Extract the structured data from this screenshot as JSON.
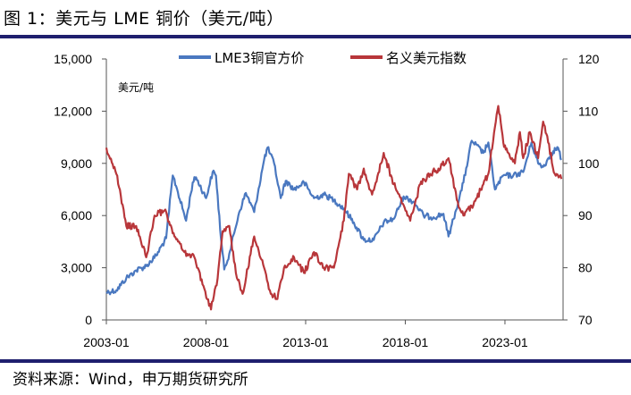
{
  "header": {
    "title": "图 1：美元与 LME 铜价（美元/吨）"
  },
  "footer": {
    "source": "资料来源：Wind，申万期货研究所"
  },
  "chart_data": {
    "type": "line",
    "unit_label": "美元/吨",
    "x_ticks": [
      "2003-01",
      "2008-01",
      "2013-01",
      "2018-01",
      "2023-01"
    ],
    "xlim": [
      "2003-01",
      "2025-12"
    ],
    "left_axis": {
      "ticks": [
        "0",
        "3,000",
        "6,000",
        "9,000",
        "12,000",
        "15,000"
      ],
      "ylim": [
        0,
        15000
      ]
    },
    "right_axis": {
      "ticks": [
        "70",
        "80",
        "90",
        "100",
        "110",
        "120"
      ],
      "ylim": [
        70,
        120
      ]
    },
    "legend_position": "top-center",
    "grid": false,
    "series": [
      {
        "name": "LME3铜官方价",
        "axis": "left",
        "color": "#4a78c0",
        "x": [
          "2003-01",
          "2003-07",
          "2004-01",
          "2004-07",
          "2005-01",
          "2005-07",
          "2006-01",
          "2006-05",
          "2006-07",
          "2007-01",
          "2007-05",
          "2007-07",
          "2008-01",
          "2008-05",
          "2008-07",
          "2008-10",
          "2008-12",
          "2009-03",
          "2009-06",
          "2009-09",
          "2010-01",
          "2010-06",
          "2010-12",
          "2011-02",
          "2011-06",
          "2011-10",
          "2012-01",
          "2012-06",
          "2012-12",
          "2013-06",
          "2013-12",
          "2014-06",
          "2014-12",
          "2015-06",
          "2015-12",
          "2016-06",
          "2016-12",
          "2017-06",
          "2017-12",
          "2018-06",
          "2018-12",
          "2019-06",
          "2019-12",
          "2020-03",
          "2020-06",
          "2020-12",
          "2021-05",
          "2021-12",
          "2022-03",
          "2022-07",
          "2022-12",
          "2023-06",
          "2023-12",
          "2024-05",
          "2024-09",
          "2024-12",
          "2025-06",
          "2025-09",
          "2025-11"
        ],
        "values": [
          1600,
          1700,
          2400,
          2850,
          3100,
          3700,
          4700,
          8300,
          7700,
          5700,
          7900,
          8200,
          7000,
          8500,
          8300,
          4700,
          2900,
          3800,
          5000,
          6200,
          7300,
          6200,
          9200,
          9900,
          9000,
          7000,
          8000,
          7500,
          7900,
          7000,
          7200,
          6900,
          6400,
          5600,
          4600,
          4600,
          5600,
          5800,
          7100,
          6800,
          6000,
          5900,
          6100,
          4800,
          5800,
          7900,
          10300,
          9600,
          10200,
          7500,
          8300,
          8300,
          8500,
          10200,
          9000,
          8800,
          9700,
          9900,
          9200
        ]
      },
      {
        "name": "名义美元指数",
        "axis": "right",
        "color": "#b8363a",
        "x": [
          "2003-01",
          "2003-07",
          "2004-01",
          "2004-07",
          "2005-01",
          "2005-06",
          "2005-12",
          "2006-06",
          "2006-12",
          "2007-06",
          "2007-12",
          "2008-04",
          "2008-08",
          "2008-11",
          "2009-03",
          "2009-07",
          "2009-11",
          "2010-06",
          "2010-12",
          "2011-04",
          "2011-08",
          "2011-12",
          "2012-06",
          "2012-12",
          "2013-06",
          "2013-12",
          "2014-06",
          "2014-12",
          "2015-03",
          "2015-08",
          "2015-12",
          "2016-05",
          "2016-12",
          "2017-06",
          "2017-12",
          "2018-04",
          "2018-10",
          "2019-04",
          "2019-09",
          "2020-03",
          "2020-08",
          "2020-12",
          "2021-06",
          "2021-12",
          "2022-03",
          "2022-07",
          "2022-09",
          "2022-12",
          "2023-03",
          "2023-07",
          "2023-10",
          "2023-12",
          "2024-04",
          "2024-09",
          "2024-12",
          "2025-03",
          "2025-07",
          "2025-11"
        ],
        "values": [
          103,
          98,
          88,
          88,
          82,
          90,
          91,
          86,
          83,
          82,
          76,
          72,
          78,
          87,
          88,
          79,
          75,
          86,
          80,
          75,
          74,
          80,
          82,
          79,
          83,
          80,
          80,
          89,
          98,
          95,
          99,
          94,
          102,
          96,
          92,
          89,
          96,
          98,
          99,
          101,
          93,
          90,
          92,
          96,
          98,
          107,
          111,
          104,
          102,
          100,
          106,
          101,
          106,
          101,
          108,
          104,
          98,
          97
        ]
      }
    ]
  }
}
